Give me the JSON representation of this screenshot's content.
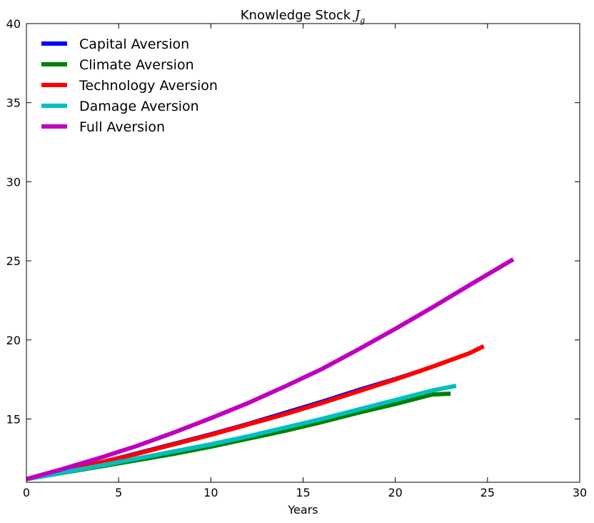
{
  "chart_data": {
    "type": "line",
    "title": "Knowledge Stock",
    "title_math": "J",
    "title_math_sub": "g",
    "xlabel": "Years",
    "ylabel": "",
    "xlim": [
      0,
      30
    ],
    "ylim": [
      11,
      40
    ],
    "xticks": [
      0,
      5,
      10,
      15,
      20,
      25,
      30
    ],
    "yticks": [
      15,
      20,
      25,
      30,
      35,
      40
    ],
    "grid": false,
    "legend_position": "top-left",
    "series": [
      {
        "name": "Capital Aversion",
        "color": "#0000ff",
        "x": [
          0,
          2,
          4,
          6,
          8,
          10,
          12,
          14,
          16,
          18,
          20,
          22,
          22.8
        ],
        "y": [
          11.2,
          11.75,
          12.3,
          12.9,
          13.5,
          14.1,
          14.75,
          15.45,
          16.15,
          16.9,
          17.6,
          18.35,
          18.6
        ]
      },
      {
        "name": "Climate Aversion",
        "color": "#008000",
        "x": [
          0,
          2,
          4,
          6,
          8,
          10,
          12,
          14,
          16,
          18,
          20,
          22,
          23
        ],
        "y": [
          11.2,
          11.6,
          12.0,
          12.4,
          12.8,
          13.25,
          13.75,
          14.25,
          14.8,
          15.4,
          15.95,
          16.55,
          16.6
        ]
      },
      {
        "name": "Technology Aversion",
        "color": "#ff0000",
        "x": [
          0,
          2,
          4,
          6,
          8,
          10,
          12,
          14,
          16,
          18,
          20,
          22,
          24,
          24.8
        ],
        "y": [
          11.2,
          11.7,
          12.25,
          12.8,
          13.4,
          14.0,
          14.65,
          15.3,
          16.0,
          16.75,
          17.5,
          18.3,
          19.15,
          19.6
        ]
      },
      {
        "name": "Damage Aversion",
        "color": "#00bfbf",
        "x": [
          0,
          2,
          4,
          6,
          8,
          10,
          12,
          14,
          16,
          18,
          20,
          22,
          23.3
        ],
        "y": [
          11.2,
          11.62,
          12.05,
          12.5,
          12.95,
          13.4,
          13.9,
          14.45,
          15.0,
          15.6,
          16.2,
          16.8,
          17.1
        ]
      },
      {
        "name": "Full Aversion",
        "color": "#bf00bf",
        "x": [
          0,
          2,
          4,
          6,
          8,
          10,
          12,
          14,
          16,
          18,
          20,
          22,
          24,
          26.4
        ],
        "y": [
          11.2,
          11.85,
          12.55,
          13.3,
          14.15,
          15.05,
          16.0,
          17.05,
          18.15,
          19.4,
          20.7,
          22.05,
          23.45,
          25.1
        ]
      }
    ]
  }
}
